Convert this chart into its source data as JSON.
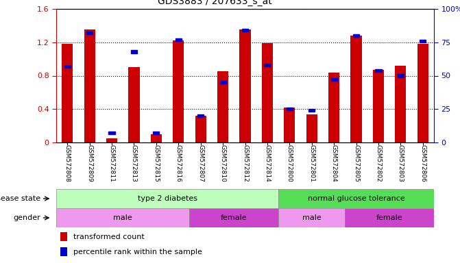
{
  "title": "GDS3883 / 207633_s_at",
  "samples": [
    "GSM572808",
    "GSM572809",
    "GSM572811",
    "GSM572813",
    "GSM572815",
    "GSM572816",
    "GSM572807",
    "GSM572810",
    "GSM572812",
    "GSM572814",
    "GSM572800",
    "GSM572801",
    "GSM572804",
    "GSM572805",
    "GSM572802",
    "GSM572803",
    "GSM572806"
  ],
  "transformed_count": [
    1.18,
    1.35,
    0.05,
    0.9,
    0.1,
    1.22,
    0.32,
    0.85,
    1.35,
    1.19,
    0.42,
    0.34,
    0.84,
    1.28,
    0.87,
    0.92,
    1.18
  ],
  "percentile_rank": [
    57,
    82,
    7,
    68,
    7,
    77,
    20,
    45,
    84,
    58,
    25,
    24,
    47,
    80,
    54,
    50,
    76
  ],
  "bar_color": "#cc0000",
  "dot_color": "#0000cc",
  "ylim_left": [
    0,
    1.6
  ],
  "ylim_right": [
    0,
    100
  ],
  "yticks_left": [
    0,
    0.4,
    0.8,
    1.2,
    1.6
  ],
  "yticks_right": [
    0,
    25,
    50,
    75,
    100
  ],
  "ytick_labels_left": [
    "0",
    "0.4",
    "0.8",
    "1.2",
    "1.6"
  ],
  "ytick_labels_right": [
    "0",
    "25",
    "50",
    "75",
    "100%"
  ],
  "disease_state_label": "disease state",
  "gender_label": "gender",
  "ds_groups": [
    {
      "label": "type 2 diabetes",
      "start": 0,
      "end": 10,
      "color": "#bbffbb"
    },
    {
      "label": "normal glucose tolerance",
      "start": 10,
      "end": 17,
      "color": "#55dd55"
    }
  ],
  "gd_groups": [
    {
      "label": "male",
      "start": 0,
      "end": 6,
      "color": "#ee99ee"
    },
    {
      "label": "female",
      "start": 6,
      "end": 10,
      "color": "#cc44cc"
    },
    {
      "label": "male",
      "start": 10,
      "end": 13,
      "color": "#ee99ee"
    },
    {
      "label": "female",
      "start": 13,
      "end": 17,
      "color": "#cc44cc"
    }
  ],
  "legend_items": [
    {
      "label": "transformed count",
      "color": "#cc0000"
    },
    {
      "label": "percentile rank within the sample",
      "color": "#0000cc"
    }
  ],
  "bar_color_left": "#cc0000",
  "tick_color_left": "#cc0000",
  "tick_color_right": "#0000cc",
  "bg_color": "#ffffff",
  "xlabels_bg": "#cccccc",
  "bar_width": 0.5
}
